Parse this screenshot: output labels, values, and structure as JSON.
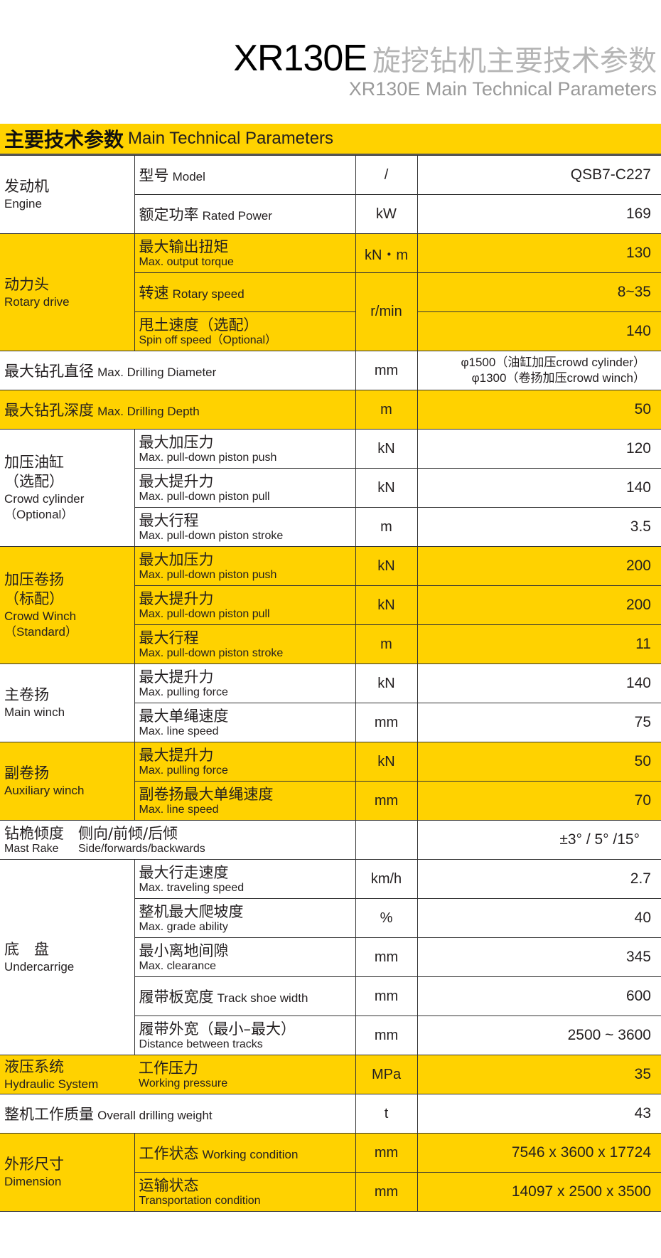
{
  "header": {
    "model": "XR130E",
    "title_cn": "旋挖钻机主要技术参数",
    "subtitle": "XR130E Main Technical Parameters"
  },
  "section": {
    "title_cn": "主要技术参数",
    "title_en": "Main Technical Parameters"
  },
  "colors": {
    "highlight": "#ffd200",
    "title_gray": "#b5b5b5"
  },
  "groups": [
    {
      "type": "group",
      "highlight": false,
      "label": [
        "发动机"
      ],
      "label_en": [
        "Engine"
      ],
      "rows": [
        {
          "cn": "型号",
          "en": "Model",
          "inline": true,
          "unit": "/",
          "value": "QSB7-C227"
        },
        {
          "cn": "额定功率",
          "en": "Rated Power",
          "inline": true,
          "unit": "kW",
          "value": "169"
        }
      ]
    },
    {
      "type": "group",
      "highlight": true,
      "label": [
        "动力头"
      ],
      "label_en": [
        "Rotary drive"
      ],
      "rows": [
        {
          "cn": "最大输出扭矩",
          "en": "Max. output torque",
          "unit": "kN・m",
          "value": "130"
        },
        {
          "cn": "转速",
          "en": "Rotary speed",
          "inline": true,
          "unit": "r/min",
          "unit_span": 2,
          "value": "8~35"
        },
        {
          "cn": "甩土速度（选配）",
          "en": "Spin off speed（Optional）",
          "value": "140"
        }
      ]
    },
    {
      "type": "single",
      "highlight": false,
      "cn": "最大钻孔直径",
      "en": "Max. Drilling Diameter",
      "unit": "mm",
      "value_lines": [
        "φ1500（油缸加压crowd cylinder）",
        "φ1300（卷扬加压crowd winch）"
      ]
    },
    {
      "type": "single",
      "highlight": true,
      "cn": "最大钻孔深度",
      "en": "Max. Drilling Depth",
      "unit": "m",
      "value": "50"
    },
    {
      "type": "group",
      "highlight": false,
      "label": [
        "加压油缸",
        "（选配）"
      ],
      "label_en": [
        "Crowd cylinder",
        "（Optional）"
      ],
      "rows": [
        {
          "cn": "最大加压力",
          "en": "Max. pull-down piston push",
          "unit": "kN",
          "value": "120"
        },
        {
          "cn": "最大提升力",
          "en": "Max. pull-down piston pull",
          "unit": "kN",
          "value": "140"
        },
        {
          "cn": "最大行程",
          "en": "Max. pull-down piston stroke",
          "unit": "m",
          "value": "3.5"
        }
      ]
    },
    {
      "type": "group",
      "highlight": true,
      "label": [
        "加压卷扬",
        "（标配）"
      ],
      "label_en": [
        "Crowd Winch",
        "（Standard）"
      ],
      "rows": [
        {
          "cn": "最大加压力",
          "en": "Max. pull-down piston push",
          "unit": "kN",
          "value": "200"
        },
        {
          "cn": "最大提升力",
          "en": "Max. pull-down piston pull",
          "unit": "kN",
          "value": "200"
        },
        {
          "cn": "最大行程",
          "en": "Max. pull-down piston stroke",
          "unit": "m",
          "value": "11"
        }
      ]
    },
    {
      "type": "group",
      "highlight": false,
      "label": [
        "主卷扬"
      ],
      "label_en": [
        "Main winch"
      ],
      "rows": [
        {
          "cn": "最大提升力",
          "en": "Max. pulling force",
          "unit": "kN",
          "value": "140"
        },
        {
          "cn": "最大单绳速度",
          "en": "Max. line speed",
          "unit": "mm",
          "value": "75"
        }
      ]
    },
    {
      "type": "group",
      "highlight": true,
      "label": [
        "副卷扬"
      ],
      "label_en": [
        "Auxiliary winch"
      ],
      "rows": [
        {
          "cn": "最大提升力",
          "en": "Max. pulling force",
          "unit": "kN",
          "value": "50"
        },
        {
          "cn": "副卷扬最大单绳速度",
          "en": "Max. line speed",
          "unit": "mm",
          "value": "70"
        }
      ]
    },
    {
      "type": "mast",
      "highlight": false,
      "cn": "钻桅倾度",
      "en": "Mast Rake",
      "cn2": "侧向/前倾/后倾",
      "en2": "Side/forwards/backwards",
      "unit": "",
      "value": "±3°  / 5°  /15°"
    },
    {
      "type": "group",
      "highlight": false,
      "label": [
        "底　盘"
      ],
      "label_en": [
        "Undercarrige"
      ],
      "rows": [
        {
          "cn": "最大行走速度",
          "en": "Max. traveling speed",
          "unit": "km/h",
          "value": "2.7"
        },
        {
          "cn": "整机最大爬坡度",
          "en": "Max. grade ability",
          "unit": "%",
          "value": "40"
        },
        {
          "cn": "最小离地间隙",
          "en": "Max. clearance",
          "unit": "mm",
          "value": "345"
        },
        {
          "cn": "履带板宽度",
          "en": "Track shoe width",
          "inline": true,
          "unit": "mm",
          "value": "600"
        },
        {
          "cn": "履带外宽（最小–最大）",
          "en": "Distance between tracks",
          "unit": "mm",
          "value": "2500 ~ 3600"
        }
      ]
    },
    {
      "type": "group",
      "highlight": true,
      "noline": true,
      "label": [
        "液压系统"
      ],
      "label_en": [
        "Hydraulic System"
      ],
      "rows": [
        {
          "cn": "工作压力",
          "en": "Working pressure",
          "unit": "MPa",
          "value": "35"
        }
      ]
    },
    {
      "type": "single",
      "highlight": false,
      "cn": "整机工作质量",
      "en": "Overall drilling weight",
      "unit": "t",
      "value": "43"
    },
    {
      "type": "group",
      "highlight": true,
      "label": [
        "外形尺寸"
      ],
      "label_en": [
        "Dimension"
      ],
      "rows": [
        {
          "cn": "工作状态",
          "en": "Working condition",
          "inline": true,
          "unit": "mm",
          "value": "7546 x 3600 x 17724"
        },
        {
          "cn": "运输状态",
          "en": "Transportation condition",
          "unit": "mm",
          "value": "14097 x 2500 x 3500"
        }
      ]
    }
  ]
}
